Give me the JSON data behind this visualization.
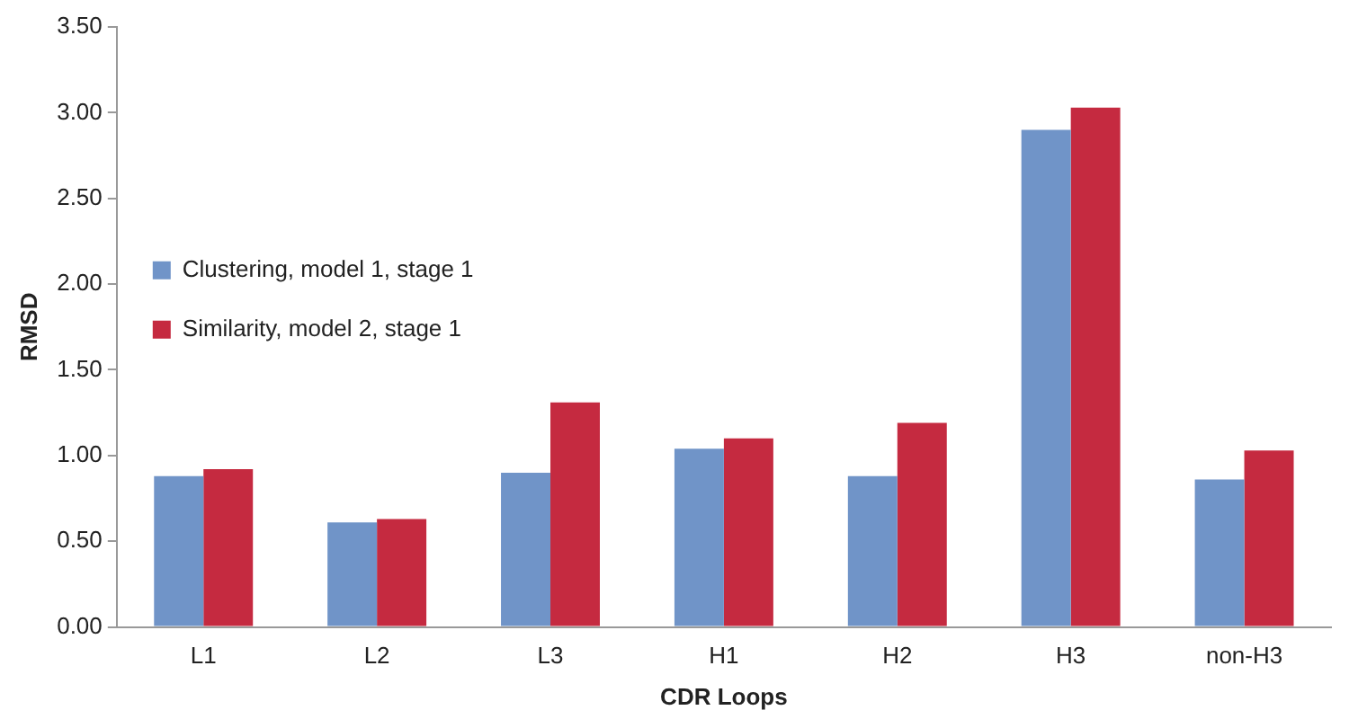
{
  "chart_data": {
    "type": "bar",
    "xlabel": "CDR Loops",
    "ylabel": "RMSD",
    "categories": [
      "L1",
      "L2",
      "L3",
      "H1",
      "H2",
      "H3",
      "non-H3"
    ],
    "series": [
      {
        "name": "Clustering, model 1, stage 1",
        "color": "#7094c8",
        "values": [
          0.88,
          0.61,
          0.9,
          1.04,
          0.88,
          2.9,
          0.86
        ]
      },
      {
        "name": "Similarity, model 2, stage 1",
        "color": "#c52a40",
        "values": [
          0.92,
          0.63,
          1.31,
          1.1,
          1.19,
          3.03,
          1.03
        ]
      }
    ],
    "ylim": [
      0,
      3.5
    ],
    "yticks": [
      {
        "value": 0,
        "label": "0.00"
      },
      {
        "value": 0.5,
        "label": "0.50"
      },
      {
        "value": 1,
        "label": "1.00"
      },
      {
        "value": 1.5,
        "label": "1.50"
      },
      {
        "value": 2,
        "label": "2.00"
      },
      {
        "value": 2.5,
        "label": "2.50"
      },
      {
        "value": 3,
        "label": "3.00"
      },
      {
        "value": 3.5,
        "label": "3.50"
      }
    ],
    "grid": false,
    "legend": "top"
  }
}
